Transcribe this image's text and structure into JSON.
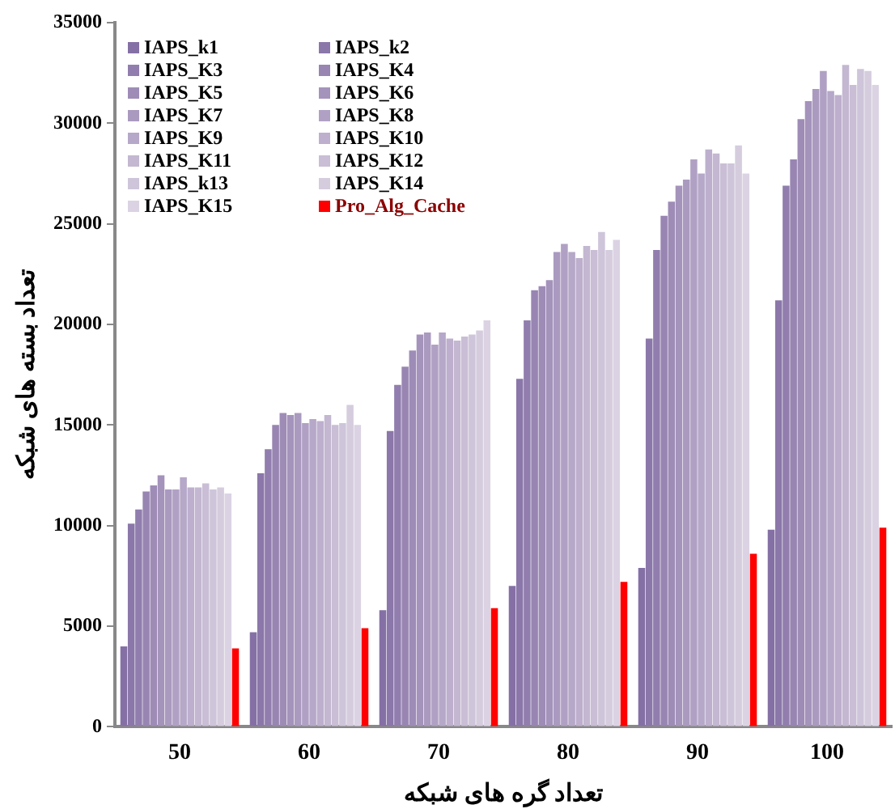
{
  "chart_data": {
    "type": "bar",
    "xlabel": "تعداد گره های شبکه",
    "ylabel": "تعداد بسته های شبکه",
    "categories": [
      "50",
      "60",
      "70",
      "80",
      "90",
      "100"
    ],
    "ylim": [
      0,
      35000
    ],
    "yticks": [
      0,
      5000,
      10000,
      15000,
      20000,
      25000,
      30000,
      35000
    ],
    "grid": false,
    "legend": "top left",
    "series": [
      {
        "name": "IAPS_k1",
        "color": "#8570a5",
        "values": [
          4000,
          4700,
          5800,
          7000,
          7900,
          9800
        ]
      },
      {
        "name": "IAPS_k2",
        "color": "#8b77a9",
        "values": [
          10100,
          12600,
          14700,
          17300,
          19300,
          21200
        ]
      },
      {
        "name": "IAPS_K3",
        "color": "#917eae",
        "values": [
          10800,
          13800,
          17000,
          20200,
          23700,
          26900
        ]
      },
      {
        "name": "IAPS_K4",
        "color": "#9885b2",
        "values": [
          11700,
          15000,
          17900,
          21700,
          25400,
          28200
        ]
      },
      {
        "name": "IAPS_K5",
        "color": "#9e8cb7",
        "values": [
          12000,
          15600,
          18700,
          21900,
          26100,
          30200
        ]
      },
      {
        "name": "IAPS_K6",
        "color": "#a493bb",
        "values": [
          12500,
          15500,
          19500,
          22200,
          26900,
          31100
        ]
      },
      {
        "name": "IAPS_K7",
        "color": "#aa9abf",
        "values": [
          11800,
          15600,
          19600,
          23600,
          27200,
          31700
        ]
      },
      {
        "name": "IAPS_K8",
        "color": "#b0a1c4",
        "values": [
          11800,
          15100,
          19000,
          24000,
          28200,
          32600
        ]
      },
      {
        "name": "IAPS_K9",
        "color": "#b6a8c8",
        "values": [
          12400,
          15300,
          19600,
          23600,
          27500,
          31600
        ]
      },
      {
        "name": "IAPS_K10",
        "color": "#bdafcd",
        "values": [
          11900,
          15200,
          19300,
          23300,
          28700,
          31400
        ]
      },
      {
        "name": "IAPS_K11",
        "color": "#c3b7d1",
        "values": [
          11900,
          15500,
          19200,
          23900,
          28500,
          32900
        ]
      },
      {
        "name": "IAPS_K12",
        "color": "#c9bed5",
        "values": [
          12100,
          15000,
          19400,
          23700,
          28000,
          31900
        ]
      },
      {
        "name": "IAPS_k13",
        "color": "#cfc5da",
        "values": [
          11800,
          15100,
          19500,
          24600,
          28000,
          32700
        ]
      },
      {
        "name": "IAPS_K14",
        "color": "#d5ccde",
        "values": [
          11900,
          16000,
          19700,
          23700,
          28900,
          32600
        ]
      },
      {
        "name": "IAPS_K15",
        "color": "#dbd3e3",
        "values": [
          11600,
          15000,
          20200,
          24200,
          27500,
          31900
        ]
      },
      {
        "name": "Pro_Alg_Cache",
        "color": "#ff0000",
        "values": [
          3900,
          4900,
          5900,
          7200,
          8600,
          9900
        ]
      }
    ]
  }
}
